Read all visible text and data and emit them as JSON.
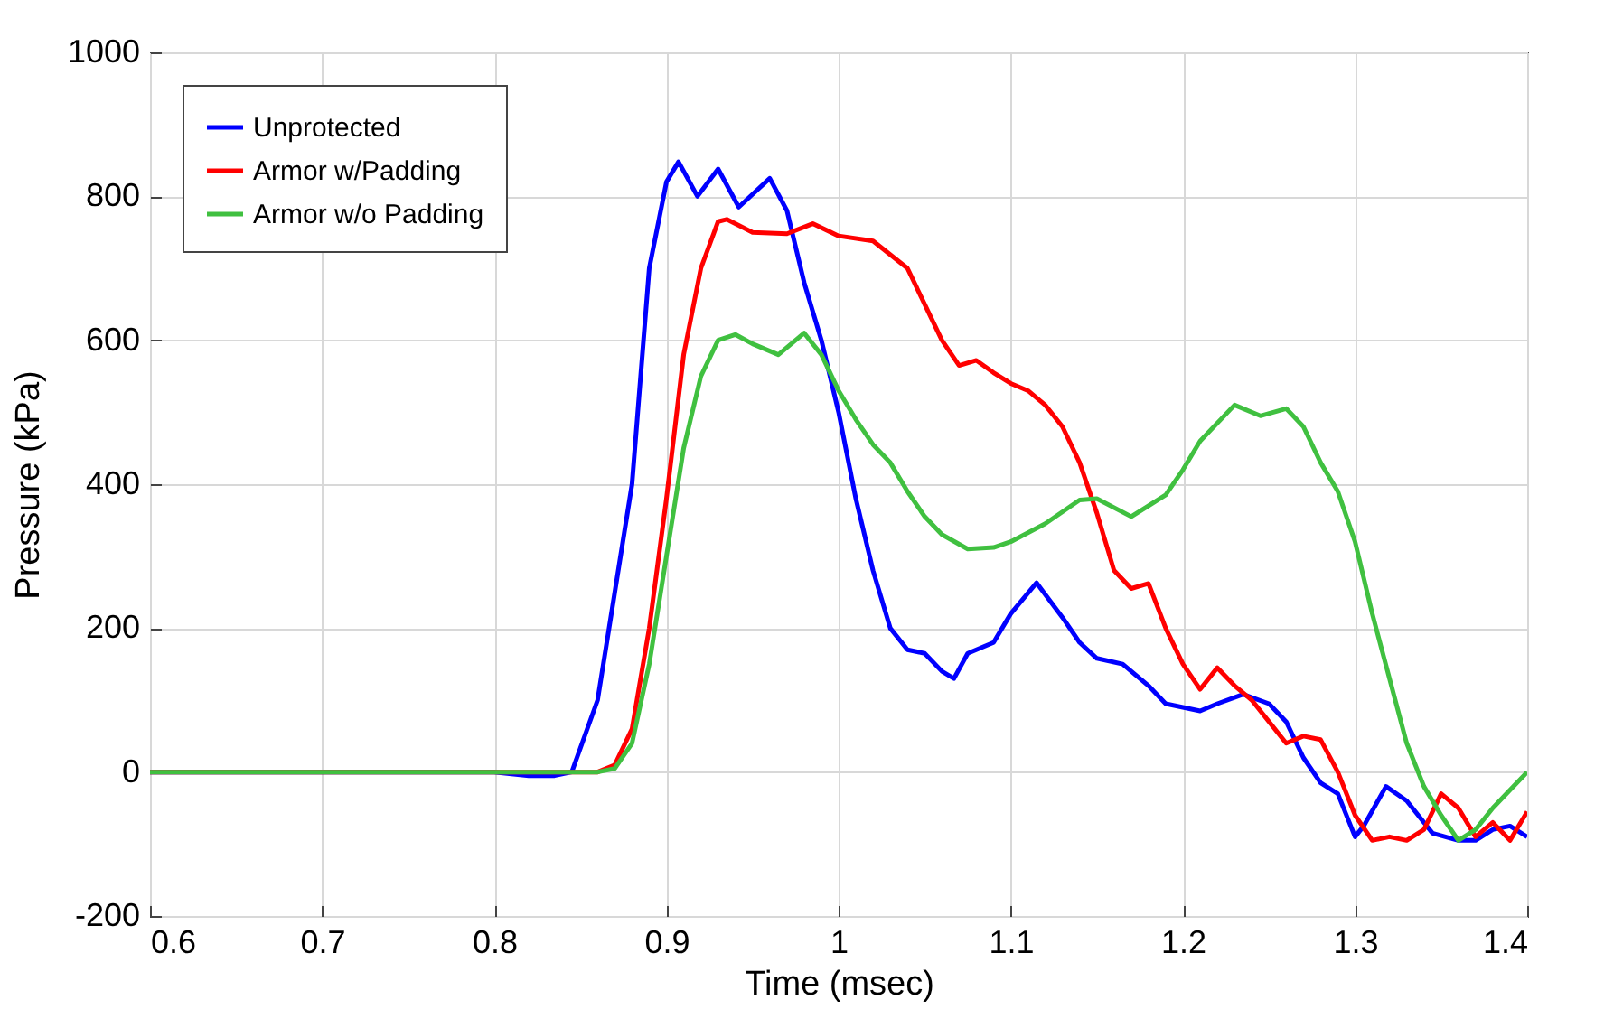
{
  "chart_data": {
    "type": "line",
    "xlabel": "Time (msec)",
    "ylabel": "Pressure (kPa)",
    "xlim": [
      0.6,
      1.4
    ],
    "xticks": [
      0.6,
      0.7,
      0.8,
      0.9,
      1,
      1.1,
      1.2,
      1.3,
      1.4
    ],
    "ylim": [
      -200,
      1000
    ],
    "yticks": [
      -200,
      0,
      200,
      400,
      600,
      800,
      1000
    ],
    "grid": true,
    "legend": "top left",
    "series": [
      {
        "name": "Unprotected",
        "color": "#0000ff",
        "x": [
          0.6,
          0.8,
          0.82,
          0.835,
          0.845,
          0.86,
          0.87,
          0.88,
          0.89,
          0.9,
          0.907,
          0.918,
          0.93,
          0.942,
          0.96,
          0.97,
          0.98,
          0.99,
          1.0,
          1.01,
          1.02,
          1.03,
          1.04,
          1.05,
          1.06,
          1.067,
          1.075,
          1.09,
          1.1,
          1.115,
          1.13,
          1.14,
          1.15,
          1.165,
          1.18,
          1.19,
          1.2,
          1.21,
          1.22,
          1.235,
          1.25,
          1.26,
          1.27,
          1.28,
          1.29,
          1.3,
          1.305,
          1.318,
          1.33,
          1.345,
          1.36,
          1.37,
          1.38,
          1.39,
          1.4
        ],
        "values": [
          0,
          0,
          -5,
          -5,
          0,
          100,
          250,
          400,
          700,
          820,
          848,
          800,
          838,
          785,
          825,
          780,
          680,
          600,
          500,
          380,
          280,
          200,
          170,
          165,
          140,
          130,
          165,
          180,
          220,
          263,
          215,
          180,
          158,
          150,
          120,
          95,
          90,
          85,
          95,
          108,
          95,
          70,
          20,
          -15,
          -30,
          -90,
          -75,
          -20,
          -40,
          -85,
          -95,
          -95,
          -80,
          -75,
          -90
        ]
      },
      {
        "name": "Armor w/Padding",
        "color": "#ff0000",
        "x": [
          0.6,
          0.86,
          0.87,
          0.88,
          0.89,
          0.9,
          0.91,
          0.92,
          0.93,
          0.935,
          0.95,
          0.97,
          0.985,
          1.0,
          1.02,
          1.04,
          1.05,
          1.06,
          1.07,
          1.08,
          1.09,
          1.1,
          1.11,
          1.12,
          1.13,
          1.14,
          1.15,
          1.16,
          1.17,
          1.18,
          1.19,
          1.2,
          1.21,
          1.22,
          1.23,
          1.24,
          1.25,
          1.26,
          1.27,
          1.28,
          1.29,
          1.3,
          1.31,
          1.32,
          1.33,
          1.34,
          1.35,
          1.36,
          1.37,
          1.38,
          1.39,
          1.4
        ],
        "values": [
          0,
          0,
          10,
          60,
          200,
          380,
          580,
          700,
          765,
          768,
          750,
          748,
          762,
          745,
          738,
          700,
          650,
          600,
          565,
          572,
          555,
          540,
          530,
          510,
          480,
          430,
          360,
          280,
          255,
          262,
          200,
          150,
          115,
          145,
          120,
          100,
          70,
          40,
          50,
          45,
          0,
          -60,
          -95,
          -90,
          -95,
          -80,
          -30,
          -50,
          -90,
          -70,
          -95,
          -55
        ]
      },
      {
        "name": "Armor w/o Padding",
        "color": "#40c040",
        "x": [
          0.6,
          0.86,
          0.87,
          0.88,
          0.89,
          0.9,
          0.91,
          0.92,
          0.93,
          0.94,
          0.95,
          0.965,
          0.98,
          0.99,
          1.0,
          1.01,
          1.02,
          1.03,
          1.04,
          1.05,
          1.06,
          1.075,
          1.09,
          1.1,
          1.12,
          1.14,
          1.15,
          1.17,
          1.19,
          1.2,
          1.21,
          1.23,
          1.245,
          1.26,
          1.27,
          1.28,
          1.29,
          1.3,
          1.31,
          1.32,
          1.33,
          1.34,
          1.35,
          1.36,
          1.37,
          1.38,
          1.39,
          1.4
        ],
        "values": [
          0,
          0,
          5,
          40,
          150,
          300,
          450,
          550,
          600,
          608,
          595,
          580,
          610,
          580,
          530,
          490,
          455,
          430,
          390,
          355,
          330,
          310,
          312,
          320,
          345,
          378,
          380,
          355,
          385,
          420,
          460,
          510,
          495,
          505,
          480,
          430,
          390,
          320,
          220,
          130,
          40,
          -20,
          -60,
          -95,
          -80,
          -50,
          -25,
          0
        ]
      }
    ]
  }
}
